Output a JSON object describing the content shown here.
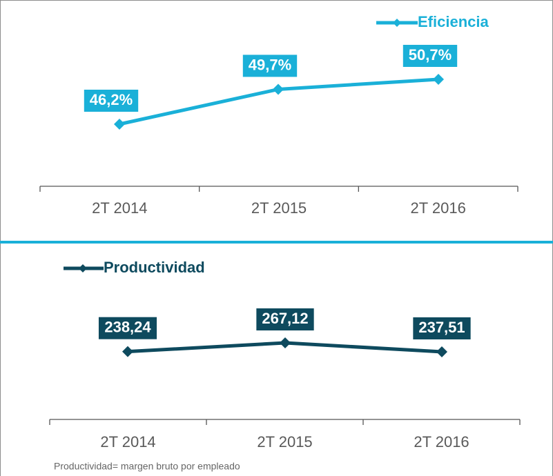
{
  "chart_data": [
    {
      "type": "line",
      "categories": [
        "2T 2014",
        "2T 2015",
        "2T 2016"
      ],
      "series": [
        {
          "name": "Eficiencia",
          "color": "#1ab0d8",
          "values": [
            46.2,
            49.7,
            50.7
          ],
          "value_labels": [
            "46,2%",
            "49,7%",
            "50,7%"
          ]
        }
      ]
    },
    {
      "type": "line",
      "categories": [
        "2T 2014",
        "2T 2015",
        "2T 2016"
      ],
      "series": [
        {
          "name": "Productividad",
          "color": "#0e4a5e",
          "values": [
            238.24,
            267.12,
            237.51
          ],
          "value_labels": [
            "238,24",
            "267,12",
            "237,51"
          ]
        }
      ]
    }
  ],
  "footnote": "Productividad= margen bruto por empleado"
}
